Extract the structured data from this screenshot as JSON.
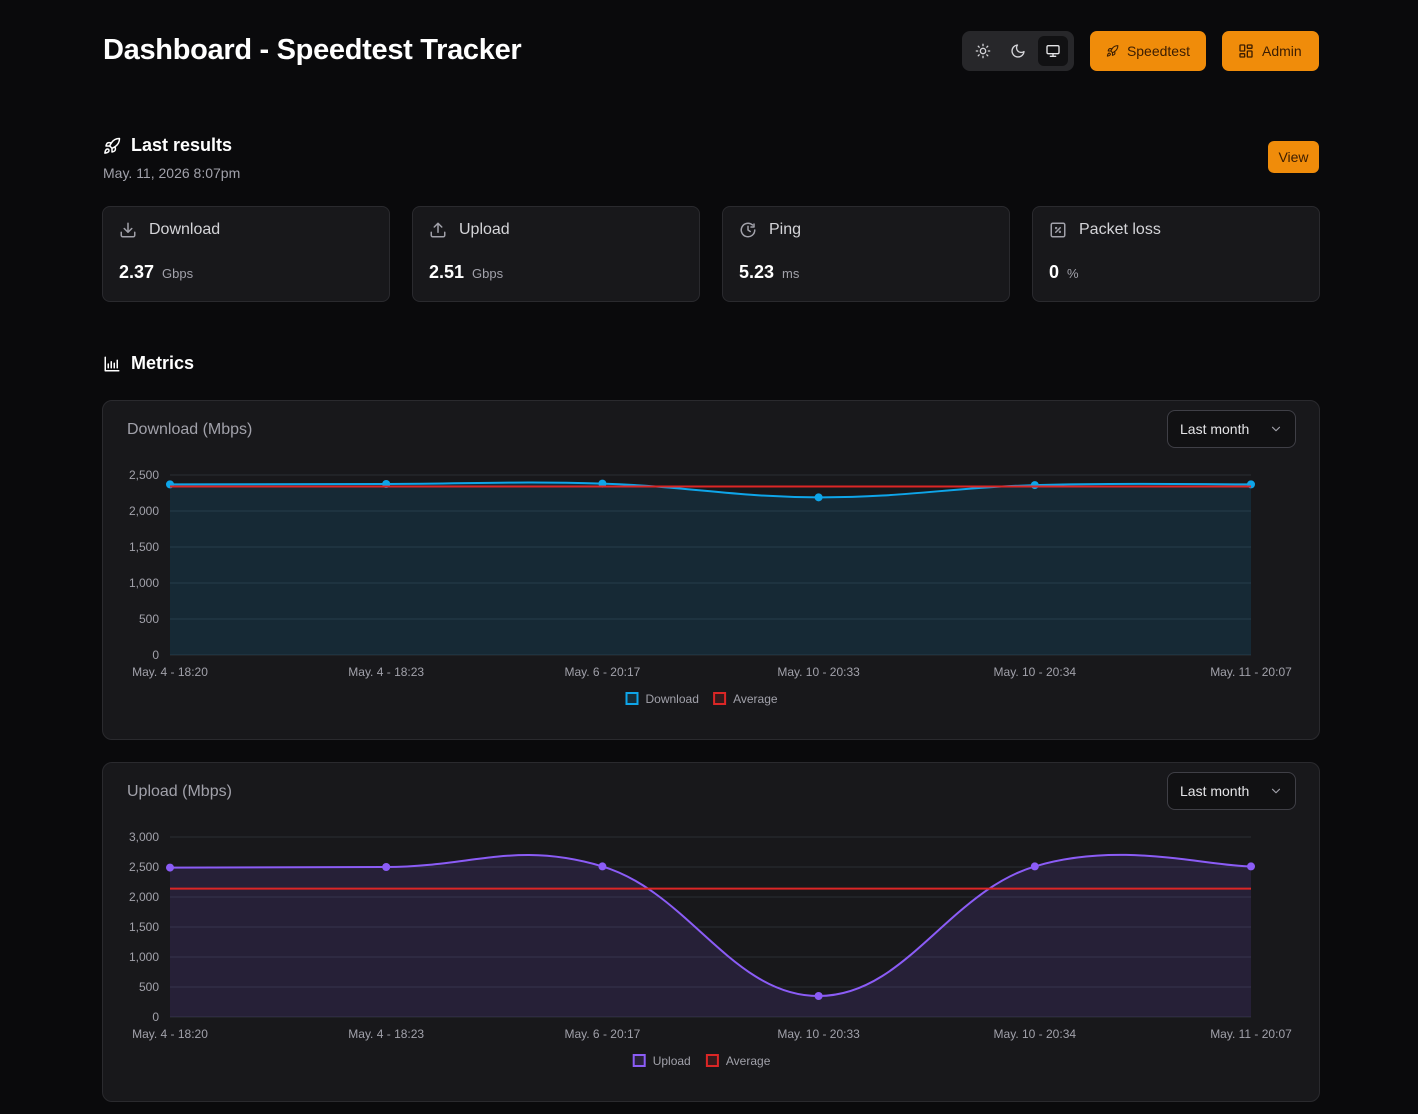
{
  "page": {
    "title": "Dashboard - Speedtest Tracker"
  },
  "header": {
    "theme_modes": [
      "light",
      "dark",
      "system"
    ],
    "active_theme": "system",
    "speedtest_label": "Speedtest",
    "admin_label": "Admin",
    "accent_color": "#f08c0a"
  },
  "last_results": {
    "heading": "Last results",
    "date": "May. 11, 2026 8:07pm",
    "view_label": "View",
    "stats": [
      {
        "label": "Download",
        "value": "2.37",
        "unit": "Gbps",
        "icon": "download-icon"
      },
      {
        "label": "Upload",
        "value": "2.51",
        "unit": "Gbps",
        "icon": "upload-icon"
      },
      {
        "label": "Ping",
        "value": "5.23",
        "unit": "ms",
        "icon": "clock-icon"
      },
      {
        "label": "Packet loss",
        "value": "0",
        "unit": "%",
        "icon": "percent-icon"
      }
    ]
  },
  "metrics": {
    "heading": "Metrics"
  },
  "chart_data": [
    {
      "type": "line",
      "title": "Download (Mbps)",
      "filter": "Last month",
      "x": [
        "May. 4 - 18:20",
        "May. 4 - 18:23",
        "May. 6 - 20:17",
        "May. 10 - 20:33",
        "May. 10 - 20:34",
        "May. 11 - 20:07"
      ],
      "ylim": [
        0,
        2500
      ],
      "yticks": [
        0,
        500,
        1000,
        1500,
        2000,
        2500
      ],
      "grid": true,
      "legend": "bottom-center",
      "series": [
        {
          "name": "Download",
          "values": [
            2370,
            2375,
            2380,
            2190,
            2360,
            2370
          ],
          "color": "#0ea5e9",
          "fill": true
        },
        {
          "name": "Average",
          "values": [
            2340,
            2340,
            2340,
            2340,
            2340,
            2340
          ],
          "color": "#dc2626",
          "fill": false
        }
      ]
    },
    {
      "type": "line",
      "title": "Upload (Mbps)",
      "filter": "Last month",
      "x": [
        "May. 4 - 18:20",
        "May. 4 - 18:23",
        "May. 6 - 20:17",
        "May. 10 - 20:33",
        "May. 10 - 20:34",
        "May. 11 - 20:07"
      ],
      "ylim": [
        0,
        3000
      ],
      "yticks": [
        0,
        500,
        1000,
        1500,
        2000,
        2500,
        3000
      ],
      "grid": true,
      "legend": "bottom-center",
      "series": [
        {
          "name": "Upload",
          "values": [
            2490,
            2500,
            2510,
            350,
            2510,
            2510
          ],
          "color": "#8b5cf6",
          "fill": true
        },
        {
          "name": "Average",
          "values": [
            2140,
            2140,
            2140,
            2140,
            2140,
            2140
          ],
          "color": "#dc2626",
          "fill": false
        }
      ]
    }
  ]
}
